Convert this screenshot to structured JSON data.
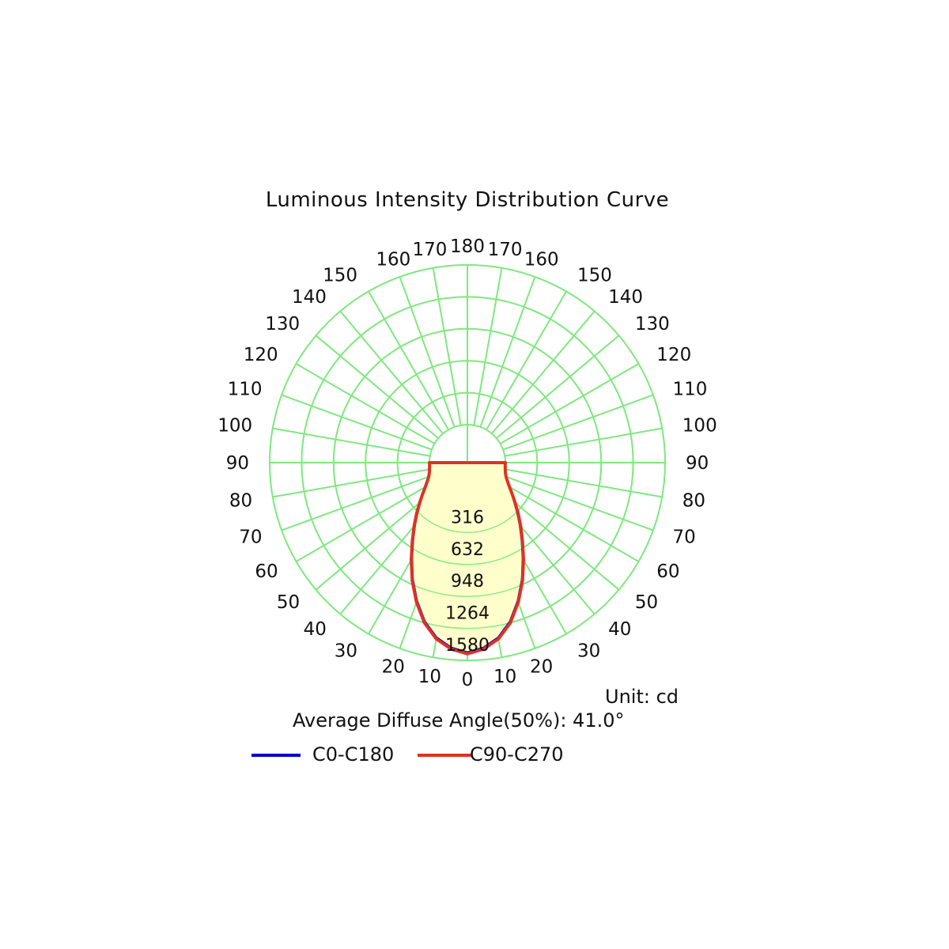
{
  "chart_data": {
    "type": "polar",
    "title": "Luminous Intensity Distribution Curve",
    "unit_label": "Unit: cd",
    "average_diffuse_angle_label": "Average Diffuse Angle(50%): 41.0°",
    "angle_labels": [
      "0",
      "10",
      "20",
      "30",
      "40",
      "50",
      "60",
      "70",
      "80",
      "90",
      "100",
      "110",
      "120",
      "130",
      "140",
      "150",
      "160",
      "170",
      "180"
    ],
    "radial_ticks": [
      316,
      632,
      948,
      1264,
      1580
    ],
    "rmax": 1580,
    "grid": true,
    "grid_color": "#7fe87f",
    "fill_color": "#ffffcc",
    "legend_position": "bottom",
    "series": [
      {
        "name": "C0-C180",
        "color": "#0000cc",
        "angles": [
          0,
          5,
          10,
          15,
          20,
          25,
          30,
          35,
          40,
          45,
          50,
          55,
          60,
          65,
          70,
          75,
          80,
          85,
          90
        ],
        "values": [
          1500,
          1460,
          1380,
          1250,
          1080,
          900,
          720,
          560,
          430,
          320,
          230,
          160,
          100,
          60,
          30,
          12,
          5,
          0,
          0
        ]
      },
      {
        "name": "C90-C270",
        "color": "#dd3322",
        "angles": [
          0,
          5,
          10,
          15,
          20,
          25,
          30,
          35,
          40,
          45,
          50,
          55,
          60,
          65,
          70,
          75,
          80,
          85,
          90
        ],
        "values": [
          1515,
          1475,
          1395,
          1265,
          1095,
          915,
          735,
          575,
          445,
          335,
          240,
          165,
          105,
          62,
          32,
          14,
          5,
          0,
          0
        ]
      }
    ]
  }
}
